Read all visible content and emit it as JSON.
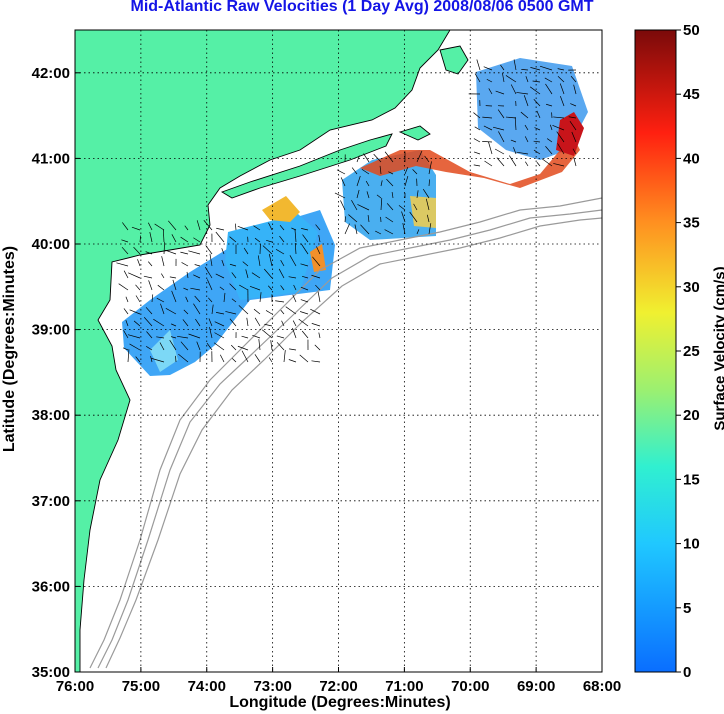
{
  "title": "Mid-Atlantic Raw Velocities (1 Day Avg) 2008/08/06 0500 GMT",
  "colors": {
    "title": "#1414e6",
    "land": "#55f0a6",
    "isobath": "#9a9a9a",
    "coast": "#000000",
    "grid": "#000000"
  },
  "map": {
    "xlabel": "Longitude (Degrees:Minutes)",
    "ylabel": "Latitude (Degrees:Minutes)",
    "lon_range": [
      -76,
      -68
    ],
    "lat_range": [
      35,
      42.5
    ],
    "lon_ticks": [
      {
        "value": -76,
        "label": "76:00"
      },
      {
        "value": -75,
        "label": "75:00"
      },
      {
        "value": -74,
        "label": "74:00"
      },
      {
        "value": -73,
        "label": "73:00"
      },
      {
        "value": -72,
        "label": "72:00"
      },
      {
        "value": -71,
        "label": "71:00"
      },
      {
        "value": -70,
        "label": "70:00"
      },
      {
        "value": -69,
        "label": "69:00"
      },
      {
        "value": -68,
        "label": "68:00"
      }
    ],
    "lat_ticks": [
      {
        "value": 35,
        "label": "35:00"
      },
      {
        "value": 36,
        "label": "36:00"
      },
      {
        "value": 37,
        "label": "37:00"
      },
      {
        "value": 38,
        "label": "38:00"
      },
      {
        "value": 39,
        "label": "39:00"
      },
      {
        "value": 40,
        "label": "40:00"
      },
      {
        "value": 41,
        "label": "41:00"
      },
      {
        "value": 42,
        "label": "42:00"
      }
    ],
    "grid": "dotted"
  },
  "colorbar": {
    "label": "Surface Velocity (cm/s)",
    "range": [
      0,
      50
    ],
    "ticks": [
      {
        "value": 0,
        "label": "0"
      },
      {
        "value": 5,
        "label": "5"
      },
      {
        "value": 10,
        "label": "10"
      },
      {
        "value": 15,
        "label": "15"
      },
      {
        "value": 20,
        "label": "20"
      },
      {
        "value": 25,
        "label": "25"
      },
      {
        "value": 30,
        "label": "30"
      },
      {
        "value": 35,
        "label": "35"
      },
      {
        "value": 40,
        "label": "40"
      },
      {
        "value": 45,
        "label": "45"
      },
      {
        "value": 50,
        "label": "50"
      }
    ],
    "colormap": "jet"
  }
}
